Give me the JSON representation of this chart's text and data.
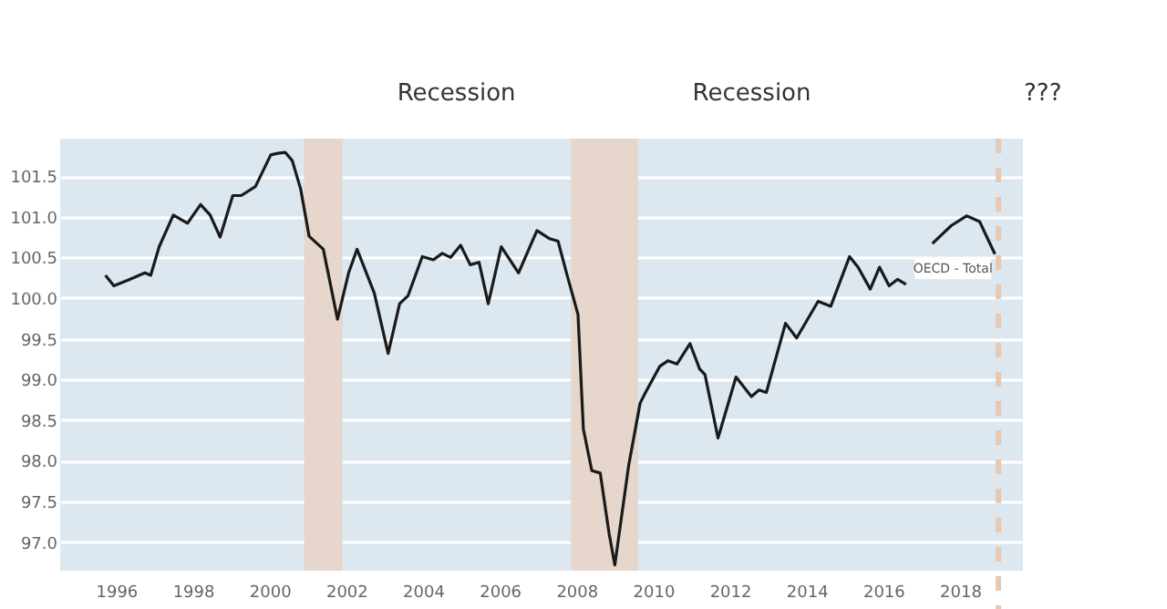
{
  "chart_data": {
    "type": "line",
    "xlim": [
      1994.54,
      2019.64
    ],
    "xticks": [
      1996,
      1998,
      2000,
      2002,
      2004,
      2006,
      2008,
      2010,
      2012,
      2014,
      2016,
      2018
    ],
    "ylim": [
      96.65,
      101.96
    ],
    "yticks": [
      {
        "value": 97,
        "label": "97.0"
      },
      97.5,
      {
        "value": 98,
        "label": "98.0"
      },
      98.5,
      {
        "value": 99,
        "label": "99.0"
      },
      99.5,
      {
        "value": 100,
        "label": "100.0"
      },
      100.5,
      {
        "value": 101,
        "label": "101.0"
      },
      101.5
    ],
    "grid": "y",
    "legend": false,
    "marker": "none",
    "line_style": "solid",
    "series": [
      {
        "name": "OECD - Total",
        "color": "#1a1a1a",
        "x": [
          1995.72,
          1995.94,
          1996.31,
          1996.75,
          1996.9,
          1997.12,
          1997.49,
          1997.86,
          1998.2,
          1998.45,
          1998.71,
          1999.04,
          1999.26,
          1999.63,
          2000.03,
          2000.22,
          2000.41,
          2000.59,
          2000.81,
          2001.03,
          2001.4,
          2001.77,
          2002.06,
          2002.28,
          2002.73,
          2003.09,
          2003.39,
          2003.61,
          2003.98,
          2004.27,
          2004.5,
          2004.72,
          2004.98,
          2005.23,
          2005.46,
          2005.7,
          2006.04,
          2006.49,
          2006.97,
          2007.3,
          2007.52,
          2007.74,
          2008.04,
          2008.18,
          2008.4,
          2008.62,
          2008.85,
          2009.0,
          2009.36,
          2009.66,
          2009.8,
          2010.17,
          2010.39,
          2010.62,
          2010.96,
          2011.21,
          2011.35,
          2011.69,
          2012.16,
          2012.56,
          2012.76,
          2012.95,
          2013.45,
          2013.74,
          2014.3,
          2014.63,
          2015.12,
          2015.34,
          2015.66,
          2015.9,
          2016.15,
          2016.37,
          2016.59,
          2016.96,
          2017.1,
          2017.28,
          2017.77,
          2018.17,
          2018.51,
          2018.91
        ],
        "values": [
          100.28,
          100.15,
          100.22,
          100.31,
          100.28,
          100.63,
          101.02,
          100.92,
          101.15,
          101.02,
          100.75,
          101.26,
          101.26,
          101.37,
          101.76,
          101.78,
          101.79,
          101.69,
          101.34,
          100.76,
          100.6,
          99.74,
          100.31,
          100.6,
          100.06,
          99.32,
          99.93,
          100.03,
          100.51,
          100.47,
          100.55,
          100.5,
          100.65,
          100.41,
          100.44,
          99.93,
          100.63,
          100.31,
          100.83,
          100.73,
          100.7,
          100.31,
          99.8,
          98.39,
          97.88,
          97.85,
          97.11,
          96.72,
          97.94,
          98.71,
          98.84,
          99.16,
          99.23,
          99.19,
          99.44,
          99.13,
          99.06,
          98.28,
          99.03,
          98.79,
          98.87,
          98.84,
          99.69,
          99.51,
          99.96,
          99.9,
          100.51,
          100.38,
          100.11,
          100.38,
          100.15,
          100.23,
          100.17,
          null,
          null,
          100.67,
          100.89,
          101.01,
          100.94,
          100.54
        ]
      }
    ],
    "bands": [
      {
        "axis": "x",
        "from": 2000.9,
        "to": 2001.9,
        "label": "Recession",
        "color": "#e6d6cc"
      },
      {
        "axis": "x",
        "from": 2007.86,
        "to": 2009.6,
        "label": "Recession",
        "color": "#e6d6cc"
      }
    ],
    "ref_lines": [
      {
        "axis": "x",
        "value": 2019.0,
        "label": "???",
        "color": "#e8c8b0",
        "line_style": "dashed"
      }
    ]
  }
}
